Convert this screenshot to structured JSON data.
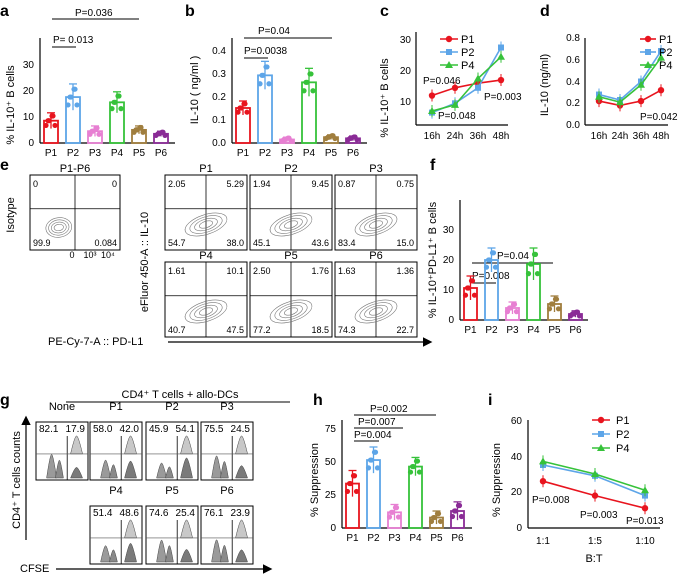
{
  "panels": {
    "a": {
      "letter": "a",
      "ylabel": "% IL-10⁺ B cells",
      "yticks": [
        "0",
        "10",
        "20",
        "30"
      ],
      "pvals": [
        "P=0.036",
        "P= 0.013"
      ]
    },
    "b": {
      "letter": "b",
      "ylabel": "IL-10 ( ng/ml )",
      "yticks": [
        "0.0",
        "0.1",
        "0.2",
        "0.3",
        "0.4"
      ],
      "pvals": [
        "P=0.04",
        "P=0.0038"
      ]
    },
    "c": {
      "letter": "c",
      "ylabel": "% IL-10⁺ B cells",
      "yticks": [
        "10",
        "20",
        "30"
      ],
      "xticks": [
        "16h",
        "24h",
        "36h",
        "48h"
      ],
      "pvals": [
        "P=0.046",
        "P=0.048",
        "P=0.003"
      ]
    },
    "d": {
      "letter": "d",
      "ylabel": "IL-10  (ng/ml)",
      "yticks": [
        "0.0",
        "0.2",
        "0.4",
        "0.6",
        "0.8"
      ],
      "xticks": [
        "16h",
        "24h",
        "36h",
        "48h"
      ],
      "pvals": [
        "P=0.042"
      ]
    },
    "e": {
      "letter": "e",
      "isotype_label": "Isotype",
      "plots": [
        {
          "title": "P1-P6",
          "ul": "0",
          "ur": "0",
          "ll": "99.9",
          "lr": "0.084"
        },
        {
          "title": "P1",
          "ul": "2.05",
          "ur": "5.29",
          "ll": "54.7",
          "lr": "38.0"
        },
        {
          "title": "P2",
          "ul": "1.94",
          "ur": "9.45",
          "ll": "45.1",
          "lr": "43.6"
        },
        {
          "title": "P3",
          "ul": "0.87",
          "ur": "0.75",
          "ll": "83.4",
          "lr": "15.0"
        },
        {
          "title": "P4",
          "ul": "1.61",
          "ur": "10.1",
          "ll": "40.7",
          "lr": "47.5"
        },
        {
          "title": "P5",
          "ul": "2.50",
          "ur": "1.76",
          "ll": "77.2",
          "lr": "18.5"
        },
        {
          "title": "P6",
          "ul": "1.63",
          "ur": "1.36",
          "ll": "74.3",
          "lr": "22.7"
        }
      ],
      "iso_ticks": [
        "0",
        "10³",
        "10⁴"
      ],
      "ylabel": "eFluor 450-A :: IL-10",
      "xlabel": "PE-Cy-7-A :: PD-L1"
    },
    "f": {
      "letter": "f",
      "ylabel": "% IL-10⁺PD-L1⁺ B cells",
      "yticks": [
        "0",
        "10",
        "20",
        "30"
      ],
      "pvals": [
        "P=0.04",
        "P=0.008"
      ]
    },
    "g": {
      "letter": "g",
      "header": "CD4⁺ T cells + allo-DCs",
      "ylabel": "CD4⁺ T cells counts",
      "xlabel": "CFSE",
      "plots": [
        {
          "title": "None",
          "left": "82.1",
          "right": "17.9"
        },
        {
          "title": "P1",
          "left": "58.0",
          "right": "42.0"
        },
        {
          "title": "P2",
          "left": "45.9",
          "right": "54.1"
        },
        {
          "title": "P3",
          "left": "75.5",
          "right": "24.5"
        },
        {
          "title": "P4",
          "left": "51.4",
          "right": "48.6"
        },
        {
          "title": "P5",
          "left": "74.6",
          "right": "25.4"
        },
        {
          "title": "P6",
          "left": "76.1",
          "right": "23.9"
        }
      ]
    },
    "h": {
      "letter": "h",
      "ylabel": "% Suppression",
      "yticks": [
        "0",
        "25",
        "50",
        "75"
      ],
      "pvals": [
        "P=0.002",
        "P=0.007",
        "P=0.004"
      ]
    },
    "i": {
      "letter": "i",
      "ylabel": "% Suppression",
      "xlabel": "B:T",
      "yticks": [
        "0",
        "20",
        "40",
        "60"
      ],
      "xticks": [
        "1:1",
        "1:5",
        "1:10"
      ],
      "pvals": [
        "P=0.008",
        "P=0.003",
        "P=0.013"
      ]
    }
  },
  "colors": {
    "P1": "#e8141e",
    "P2": "#5da5e8",
    "P3": "#e77fd2",
    "P4": "#36c23a",
    "P5": "#a07e3e",
    "P6": "#8a2b96"
  },
  "chart_data": [
    {
      "id": "a",
      "type": "bar",
      "categories": [
        "P1",
        "P2",
        "P3",
        "P4",
        "P5",
        "P6"
      ],
      "values": [
        8.5,
        17.5,
        4.5,
        15.5,
        5.0,
        3.5
      ],
      "errors": [
        3,
        5,
        2,
        4,
        1.5,
        1.0
      ],
      "ylabel": "% IL-10⁺ B cells",
      "ylim": [
        0,
        40
      ]
    },
    {
      "id": "b",
      "type": "bar",
      "categories": [
        "P1",
        "P2",
        "P3",
        "P4",
        "P5",
        "P6"
      ],
      "values": [
        0.15,
        0.29,
        0.015,
        0.26,
        0.025,
        0.02
      ],
      "errors": [
        0.03,
        0.06,
        0.01,
        0.06,
        0.01,
        0.01
      ],
      "ylabel": "IL-10 ( ng/ml )",
      "ylim": [
        0,
        0.45
      ]
    },
    {
      "id": "c",
      "type": "line",
      "x": [
        "16h",
        "24h",
        "36h",
        "48h"
      ],
      "series": [
        {
          "name": "P1",
          "values": [
            9.5,
            12,
            13.5,
            14.5
          ]
        },
        {
          "name": "P2",
          "values": [
            4,
            7,
            12,
            25
          ]
        },
        {
          "name": "P4",
          "values": [
            4.5,
            6.5,
            15,
            22
          ]
        }
      ],
      "ylabel": "% IL-10⁺ B cells",
      "ylim": [
        0,
        30
      ]
    },
    {
      "id": "d",
      "type": "line",
      "x": [
        "16h",
        "24h",
        "36h",
        "48h"
      ],
      "series": [
        {
          "name": "P1",
          "values": [
            0.22,
            0.18,
            0.22,
            0.32
          ]
        },
        {
          "name": "P2",
          "values": [
            0.28,
            0.23,
            0.4,
            0.68
          ]
        },
        {
          "name": "P4",
          "values": [
            0.26,
            0.21,
            0.37,
            0.62
          ]
        }
      ],
      "ylabel": "IL-10  (ng/ml)",
      "ylim": [
        0,
        0.8
      ]
    },
    {
      "id": "f",
      "type": "bar",
      "categories": [
        "P1",
        "P2",
        "P3",
        "P4",
        "P5",
        "P6"
      ],
      "values": [
        8,
        15,
        3,
        14,
        4,
        1.5
      ],
      "errors": [
        3,
        3,
        1.5,
        4,
        2,
        0.8
      ],
      "ylabel": "% IL-10⁺PD-L1⁺ B cells",
      "ylim": [
        0,
        30
      ]
    },
    {
      "id": "h",
      "type": "bar",
      "categories": [
        "P1",
        "P2",
        "P3",
        "P4",
        "P5",
        "P6"
      ],
      "values": [
        34,
        52,
        12,
        47,
        8,
        13
      ],
      "errors": [
        10,
        10,
        6,
        7,
        5,
        7
      ],
      "ylabel": "% Suppression",
      "ylim": [
        0,
        75
      ]
    },
    {
      "id": "i",
      "type": "line",
      "x": [
        "1:1",
        "1:5",
        "1:10"
      ],
      "series": [
        {
          "name": "P1",
          "values": [
            26,
            18,
            11
          ]
        },
        {
          "name": "P2",
          "values": [
            35,
            29,
            18
          ]
        },
        {
          "name": "P4",
          "values": [
            37,
            30,
            21
          ]
        }
      ],
      "ylabel": "% Suppression",
      "xlabel": "B:T",
      "ylim": [
        0,
        60
      ]
    }
  ]
}
